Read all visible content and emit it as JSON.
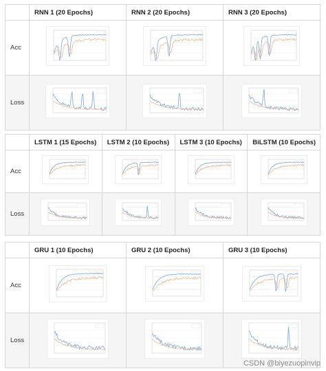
{
  "watermark": "CSDN @biyezuopinvip",
  "colors": {
    "blue": "#7aa9d9",
    "orange": "#f2b88a",
    "grid": "#e4e4e4"
  },
  "tables": [
    {
      "row_labels": [
        "Acc",
        "Loss"
      ],
      "headers": [
        "RNN 1 (20 Epochs)",
        "RNN 2 (20 Epochs)",
        "RNN 3 (20 Epochs)"
      ]
    },
    {
      "row_labels": [
        "Acc",
        "Loss"
      ],
      "headers": [
        "LSTM 1 (15 Epochs)",
        "LSTM 2 (10 Epochs)",
        "LSTM 3 (10 Epochs)",
        "BiLSTM (10 Epochs)"
      ]
    },
    {
      "row_labels": [
        "Acc",
        "Loss"
      ],
      "headers": [
        "GRU 1 (10 Epochs)",
        "GRU 2 (10 Epochs)",
        "GRU 3 (10 Epochs)"
      ]
    }
  ]
}
